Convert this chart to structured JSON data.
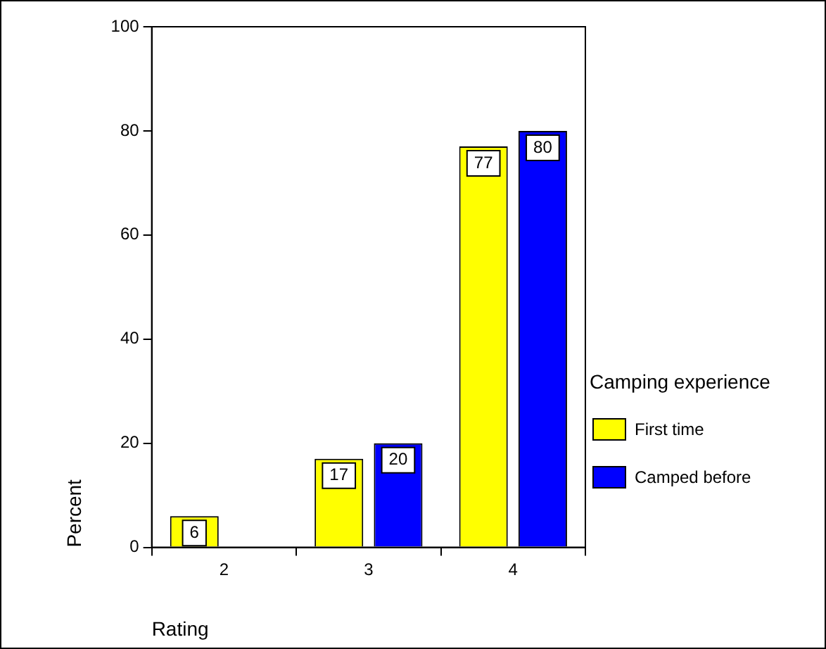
{
  "chart_data": {
    "type": "bar",
    "xlabel": "Rating",
    "ylabel": "Percent",
    "legend_title": "Camping experience",
    "categories": [
      "2",
      "3",
      "4"
    ],
    "series": [
      {
        "name": "First time",
        "color": "#ffff00",
        "values": [
          6,
          17,
          77
        ],
        "value_labels": [
          "6",
          "17",
          "77"
        ]
      },
      {
        "name": "Camped before",
        "color": "#0000ff",
        "values": [
          0,
          20,
          80
        ],
        "value_labels": [
          null,
          "20",
          "80"
        ]
      }
    ],
    "ylim": [
      0,
      100
    ],
    "yticks": [
      0,
      20,
      40,
      60,
      80,
      100
    ],
    "grid": false,
    "legend": "right"
  }
}
